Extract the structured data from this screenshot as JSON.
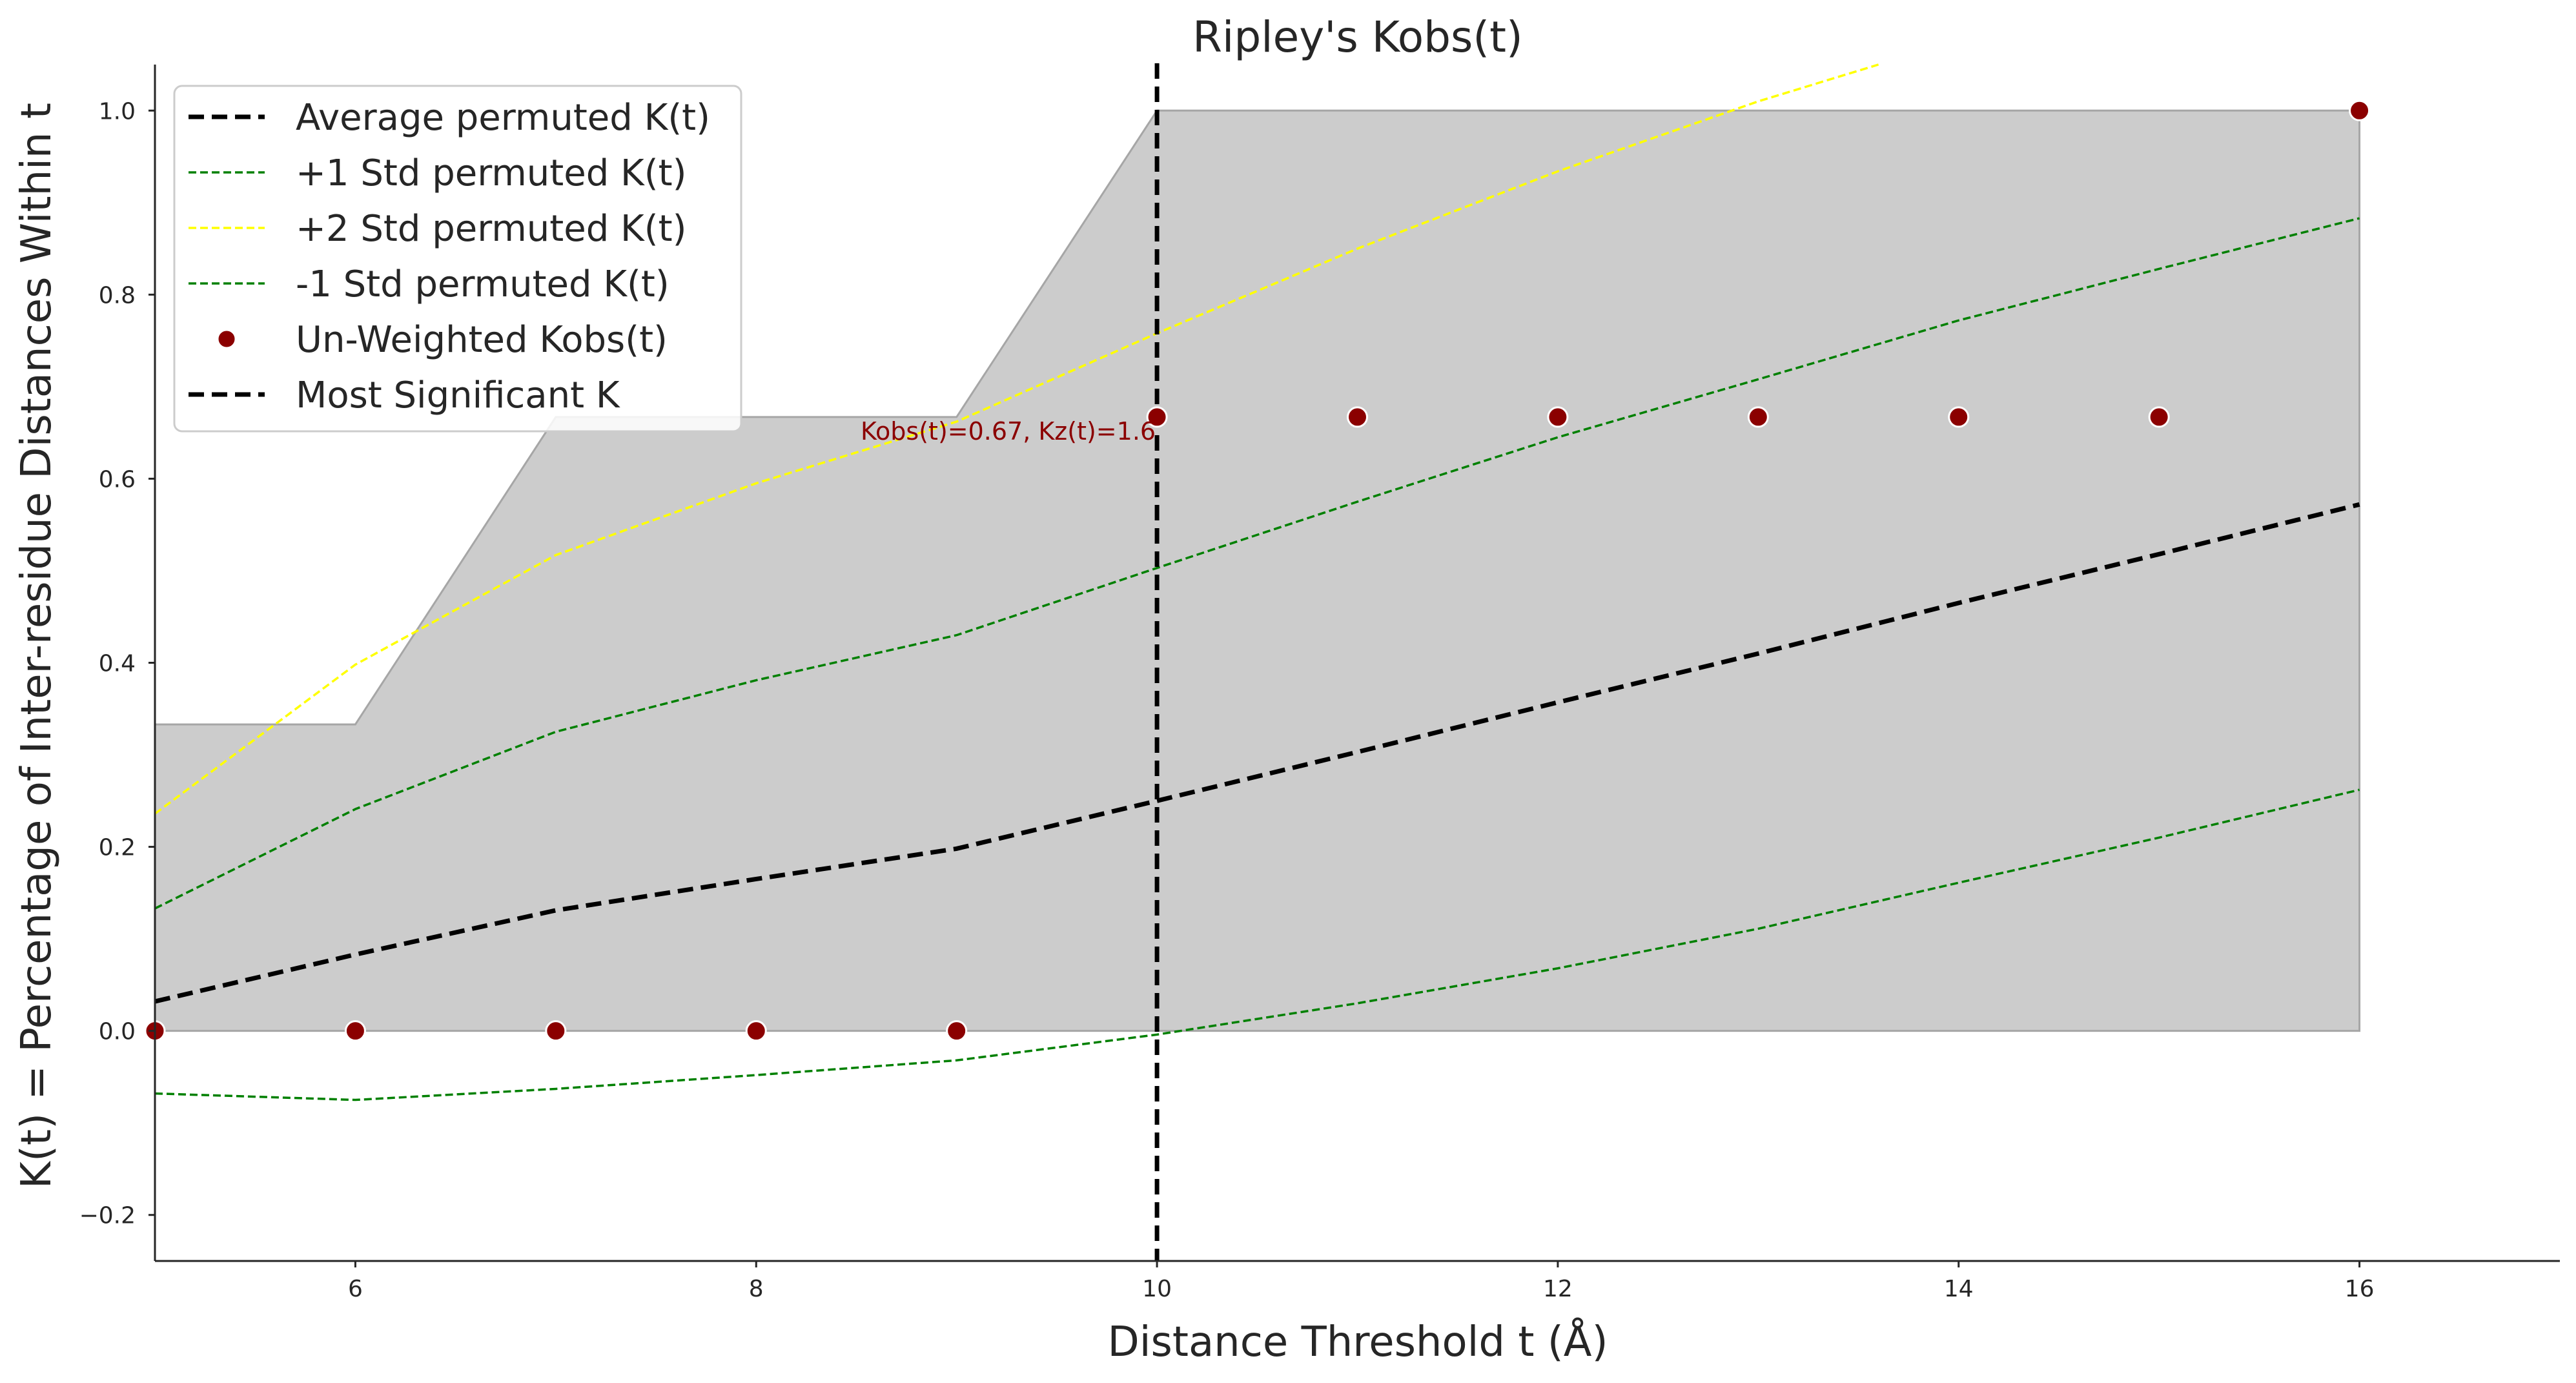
{
  "chart_data": {
    "type": "line",
    "title": "Ripley's Kobs(t)",
    "xlabel": "Distance Threshold t (Å)",
    "ylabel": "K(t) = Percentage of Inter-residue Distances Within t",
    "xlim": [
      5,
      17
    ],
    "ylim": [
      -0.25,
      1.05
    ],
    "xticks": [
      6,
      8,
      10,
      12,
      14,
      16
    ],
    "xtick_labels": [
      "6",
      "8",
      "10",
      "12",
      "14",
      "16"
    ],
    "yticks": [
      -0.2,
      0.0,
      0.2,
      0.4,
      0.6,
      0.8,
      1.0
    ],
    "ytick_labels": [
      "−0.2",
      "0.0",
      "0.2",
      "0.4",
      "0.6",
      "0.8",
      "1.0"
    ],
    "grid": false,
    "legend_position": "top-left",
    "fill": {
      "color": "#cccccc",
      "edge_color": "#a6a6a6",
      "x": [
        5,
        6,
        7,
        8,
        9,
        10,
        11,
        12,
        13,
        14,
        15,
        16
      ],
      "lower": [
        0,
        0,
        0,
        0,
        0,
        0,
        0,
        0,
        0,
        0,
        0,
        0
      ],
      "upper": [
        0.333,
        0.333,
        0.667,
        0.667,
        0.667,
        1.0,
        1.0,
        1.0,
        1.0,
        1.0,
        1.0,
        1.0
      ]
    },
    "series": [
      {
        "name": "Average permuted K(t)",
        "kind": "line",
        "style": "dashed",
        "width": "thick",
        "color": "#000000",
        "x": [
          5,
          6,
          7,
          8,
          9,
          10,
          11,
          12,
          13,
          14,
          15,
          16
        ],
        "y": [
          0.032,
          0.083,
          0.131,
          0.165,
          0.198,
          0.25,
          0.303,
          0.357,
          0.41,
          0.465,
          0.518,
          0.572
        ]
      },
      {
        "name": "+1 Std permuted K(t)",
        "kind": "line",
        "style": "dashed",
        "width": "thin",
        "color": "#008000",
        "x": [
          5,
          6,
          7,
          8,
          9,
          10,
          11,
          12,
          13,
          14,
          15,
          16
        ],
        "y": [
          0.133,
          0.241,
          0.325,
          0.381,
          0.43,
          0.503,
          0.575,
          0.645,
          0.708,
          0.772,
          0.828,
          0.883
        ]
      },
      {
        "name": "+2 Std permuted K(t)",
        "kind": "line",
        "style": "dashed",
        "width": "thin",
        "color": "#ffff00",
        "x": [
          5,
          6,
          7,
          8,
          9,
          10,
          11,
          12,
          13,
          13.6
        ],
        "y": [
          0.236,
          0.398,
          0.517,
          0.595,
          0.662,
          0.758,
          0.85,
          0.934,
          1.01,
          1.05
        ]
      },
      {
        "name": "-1 Std permuted K(t)",
        "kind": "line",
        "style": "dashed",
        "width": "thin",
        "color": "#008000",
        "x": [
          5,
          6,
          7,
          8,
          9,
          10,
          11,
          12,
          13,
          14,
          15,
          16
        ],
        "y": [
          -0.068,
          -0.075,
          -0.063,
          -0.048,
          -0.032,
          -0.004,
          0.03,
          0.068,
          0.111,
          0.161,
          0.21,
          0.262
        ]
      },
      {
        "name": "Un-Weighted Kobs(t)",
        "kind": "scatter",
        "color": "#8b0000",
        "x": [
          5,
          6,
          7,
          8,
          9,
          10,
          11,
          12,
          13,
          14,
          15,
          16
        ],
        "y": [
          0.0,
          0.0,
          0.0,
          0.0,
          0.0,
          0.667,
          0.667,
          0.667,
          0.667,
          0.667,
          0.667,
          1.0
        ]
      },
      {
        "name": "Most Significant K",
        "kind": "vline",
        "style": "dashed",
        "width": "thick",
        "color": "#000000",
        "x": 10
      }
    ],
    "annotations": [
      {
        "text": "Kobs(t)=0.67, Kz(t)=1.6",
        "x": 10,
        "y": 0.667,
        "color": "#8b0000",
        "align": "right"
      }
    ]
  }
}
